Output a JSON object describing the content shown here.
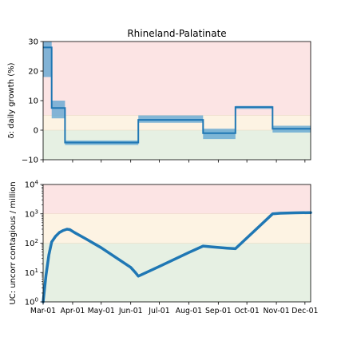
{
  "chart_data": [
    {
      "type": "line",
      "title": "Rhineland-Palatinate",
      "ylabel": "δ: daily growth (%)",
      "ylim": [
        -10,
        30
      ],
      "yticks": [
        -10,
        0,
        10,
        20,
        30
      ],
      "ytick_labels": [
        "−10",
        "0",
        "10",
        "20",
        "30"
      ],
      "x_range": [
        "2020-03-01",
        "2020-12-07"
      ],
      "zones": [
        {
          "name": "red",
          "from": 5,
          "to": 30,
          "color": "#fce4e4"
        },
        {
          "name": "yellow",
          "from": 0,
          "to": 5,
          "color": "#fdf3e3"
        },
        {
          "name": "green",
          "from": -10,
          "to": 0,
          "color": "#e6f0e3"
        }
      ],
      "series": [
        {
          "segments": [
            {
              "start": "2020-03-01",
              "end": "2020-03-10",
              "value": 28,
              "low": 18,
              "high": 30
            },
            {
              "start": "2020-03-10",
              "end": "2020-03-24",
              "value": 7.5,
              "low": 4,
              "high": 10
            },
            {
              "start": "2020-03-24",
              "end": "2020-06-09",
              "value": -4.2,
              "low": -5,
              "high": -3.5
            },
            {
              "start": "2020-06-09",
              "end": "2020-08-16",
              "value": 3.5,
              "low": 2.5,
              "high": 5
            },
            {
              "start": "2020-08-16",
              "end": "2020-09-19",
              "value": -1,
              "low": -3,
              "high": 0.5
            },
            {
              "start": "2020-09-19",
              "end": "2020-10-28",
              "value": 7.8,
              "low": 7.2,
              "high": 8.2
            },
            {
              "start": "2020-10-28",
              "end": "2020-12-07",
              "value": 0.5,
              "low": -0.8,
              "high": 1.5
            }
          ]
        }
      ],
      "line_color": "#1f77b4",
      "band_color": "#5aa3d1",
      "grid": false
    },
    {
      "type": "line",
      "title": "",
      "ylabel": "UC: uncorr contagious / million",
      "yscale": "log",
      "ylim": [
        1,
        10000
      ],
      "yticks": [
        1,
        10,
        100,
        1000,
        10000
      ],
      "ytick_base": [
        "10",
        "10",
        "10",
        "10",
        "10"
      ],
      "ytick_exp": [
        "0",
        "1",
        "2",
        "3",
        "4"
      ],
      "xticks": [
        "2020-03-01",
        "2020-04-01",
        "2020-05-01",
        "2020-06-01",
        "2020-07-01",
        "2020-08-01",
        "2020-09-01",
        "2020-10-01",
        "2020-11-01",
        "2020-12-01"
      ],
      "xtick_labels": [
        "Mar-01",
        "Apr-01",
        "May-01",
        "Jun-01",
        "Jul-01",
        "Aug-01",
        "Sep-01",
        "Oct-01",
        "Nov-01",
        "Dec-01"
      ],
      "x_range": [
        "2020-03-01",
        "2020-12-07"
      ],
      "zones": [
        {
          "name": "red",
          "from": 1000,
          "to": 10000,
          "color": "#fce4e4"
        },
        {
          "name": "yellow",
          "from": 100,
          "to": 1000,
          "color": "#fdf3e3"
        },
        {
          "name": "green",
          "from": 1,
          "to": 100,
          "color": "#e6f0e3"
        }
      ],
      "series": [
        {
          "x": [
            "2020-03-01",
            "2020-03-04",
            "2020-03-07",
            "2020-03-10",
            "2020-03-14",
            "2020-03-18",
            "2020-03-22",
            "2020-03-26",
            "2020-03-29",
            "2020-04-03",
            "2020-04-15",
            "2020-05-01",
            "2020-05-15",
            "2020-06-01",
            "2020-06-06",
            "2020-06-09",
            "2020-07-01",
            "2020-08-01",
            "2020-08-16",
            "2020-08-25",
            "2020-09-10",
            "2020-09-19",
            "2020-10-01",
            "2020-10-15",
            "2020-10-28",
            "2020-11-05",
            "2020-11-20",
            "2020-12-07"
          ],
          "y": [
            1,
            8,
            40,
            110,
            170,
            230,
            270,
            300,
            290,
            230,
            140,
            70,
            35,
            15,
            10,
            7.5,
            16,
            48,
            80,
            75,
            68,
            65,
            150,
            400,
            1000,
            1050,
            1080,
            1100
          ]
        }
      ],
      "line_color": "#1f77b4",
      "grid": false
    }
  ]
}
